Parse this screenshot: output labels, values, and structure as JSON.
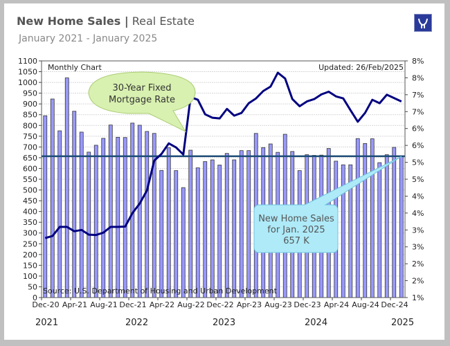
{
  "header": {
    "title_bold": "New Home Sales |",
    "title_rest": " Real Estate",
    "subtitle": "January 2021 - January 2025",
    "logo_icon": "bull-logo-icon"
  },
  "chart_data": {
    "type": "bar",
    "label_left": "Monthly Chart",
    "label_right": "Updated: 26/Feb/2025",
    "source": "Source:  U.S. Department of Housing and Urban Development",
    "ylim": [
      0,
      1100
    ],
    "y2lim": [
      1,
      8
    ],
    "y_ticks": [
      0,
      50,
      100,
      150,
      200,
      250,
      300,
      350,
      400,
      450,
      500,
      550,
      600,
      650,
      700,
      750,
      800,
      850,
      900,
      950,
      1000,
      1050,
      1100
    ],
    "y2_tick_labels": [
      "8%",
      "8%",
      "7%",
      "7%",
      "6%",
      "6%",
      "5%",
      "5%",
      "4%",
      "4%",
      "3%",
      "3%",
      "2%",
      "2%",
      "1%"
    ],
    "x_tick_labels": [
      "Dec-20",
      "Apr-21",
      "Aug-21",
      "Dec-21",
      "Apr-22",
      "Aug-22",
      "Dec-22",
      "Apr-23",
      "Aug-23",
      "Dec-23",
      "Apr-24",
      "Aug-24",
      "Dec-24"
    ],
    "year_labels": [
      "2021",
      "2022",
      "2023",
      "2024",
      "2025"
    ],
    "grid": true,
    "bar_color": "#9999ff",
    "line_color": "#000080",
    "ref_line_color": "#1f4e79",
    "months": [
      "Dec-20",
      "Jan-21",
      "Feb-21",
      "Mar-21",
      "Apr-21",
      "May-21",
      "Jun-21",
      "Jul-21",
      "Aug-21",
      "Sep-21",
      "Oct-21",
      "Nov-21",
      "Dec-21",
      "Jan-22",
      "Feb-22",
      "Mar-22",
      "Apr-22",
      "May-22",
      "Jun-22",
      "Jul-22",
      "Aug-22",
      "Sep-22",
      "Oct-22",
      "Nov-22",
      "Dec-22",
      "Jan-23",
      "Feb-23",
      "Mar-23",
      "Apr-23",
      "May-23",
      "Jun-23",
      "Jul-23",
      "Aug-23",
      "Sep-23",
      "Oct-23",
      "Nov-23",
      "Dec-23",
      "Jan-24",
      "Feb-24",
      "Mar-24",
      "Apr-24",
      "May-24",
      "Jun-24",
      "Jul-24",
      "Aug-24",
      "Sep-24",
      "Oct-24",
      "Nov-24",
      "Dec-24",
      "Jan-25"
    ],
    "series": [
      {
        "type": "bar",
        "values": [
          845,
          923,
          775,
          1021,
          866,
          769,
          676,
          708,
          740,
          802,
          745,
          744,
          811,
          801,
          772,
          763,
          591,
          696,
          590,
          511,
          685,
          603,
          632,
          640,
          616,
          670,
          640,
          683,
          683,
          763,
          697,
          714,
          675,
          759,
          679,
          590,
          664,
          661,
          662,
          693,
          634,
          617,
          617,
          739,
          716,
          738,
          627,
          664,
          698,
          657
        ]
      },
      {
        "type": "line",
        "axis": "right",
        "name": "30-Year Fixed Mortgage Rate",
        "values": [
          2.76,
          2.82,
          3.09,
          3.09,
          2.96,
          3.0,
          2.86,
          2.85,
          2.92,
          3.09,
          3.09,
          3.1,
          3.5,
          3.78,
          4.17,
          5.05,
          5.25,
          5.56,
          5.44,
          5.23,
          6.93,
          6.85,
          6.42,
          6.32,
          6.3,
          6.58,
          6.38,
          6.46,
          6.75,
          6.89,
          7.11,
          7.24,
          7.65,
          7.48,
          6.87,
          6.66,
          6.8,
          6.87,
          7.01,
          7.09,
          6.95,
          6.89,
          6.54,
          6.2,
          6.46,
          6.85,
          6.75,
          7.0,
          6.9,
          6.8
        ]
      }
    ],
    "reference_value": 657,
    "annotations": {
      "rate_callout": [
        "30-Year Fixed",
        "Mortgage Rate"
      ],
      "sales_callout": [
        "New Home Sales",
        "for Jan. 2025",
        "657 K"
      ]
    }
  }
}
